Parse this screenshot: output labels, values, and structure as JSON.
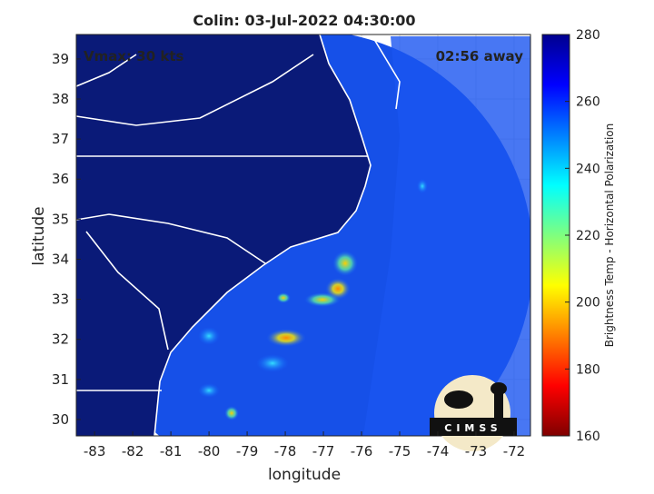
{
  "chart_data": {
    "type": "image",
    "title": "Colin: 03-Jul-2022 04:30:00",
    "annotations": [
      "Vmax: 30 kts",
      "02:56 away"
    ],
    "xlabel": "longitude",
    "ylabel": "latitude",
    "xlim": [
      -83.48,
      -71.57
    ],
    "xticks": [
      -83,
      -82,
      -81,
      -80,
      -79,
      -78,
      -77,
      -76,
      -75,
      -74,
      -73,
      -72
    ],
    "ylim": [
      29.59,
      39.61
    ],
    "yticks": [
      30,
      31,
      32,
      33,
      34,
      35,
      36,
      37,
      38,
      39
    ],
    "grid": true,
    "colorbar": {
      "label": "Brightness Temp - Horizontal Polarization",
      "lim": [
        160,
        280
      ],
      "ticks": [
        160,
        180,
        200,
        220,
        240,
        260,
        280
      ],
      "colormap": [
        "#7f0000",
        "#ff0000",
        "#ff7f00",
        "#ffff00",
        "#7fff7f",
        "#00ffff",
        "#007fff",
        "#0000ff",
        "#00008f"
      ]
    },
    "logo": "CIMSS"
  }
}
